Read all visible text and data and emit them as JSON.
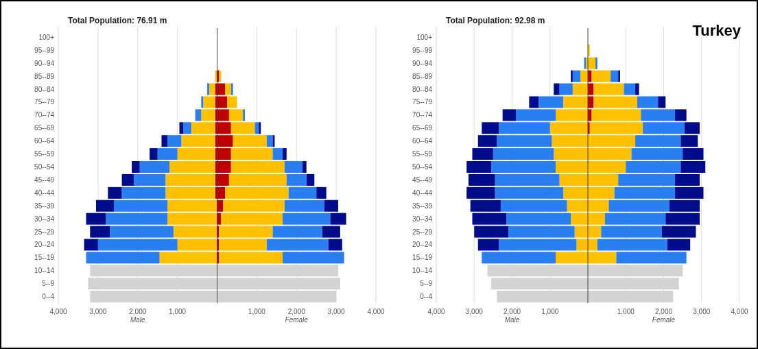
{
  "chart_data": [
    {
      "type": "bar",
      "orientation": "horizontal",
      "stacked": true,
      "title": "Total Population: 76.91 m",
      "categories": [
        "100+",
        "95--99",
        "90--94",
        "85--89",
        "80--84",
        "75--79",
        "70--74",
        "65--69",
        "60--64",
        "55--59",
        "50--54",
        "45--49",
        "40--44",
        "35--39",
        "30--34",
        "25--29",
        "20--24",
        "15--19",
        "10--14",
        "5--9",
        "0--4"
      ],
      "series": [
        {
          "color": "#c00000",
          "values": [
            null,
            null,
            null,
            null,
            -50,
            -50,
            -50,
            -50,
            -50,
            -50,
            -50,
            -50,
            -50,
            null,
            null,
            null,
            null,
            null,
            null,
            null,
            null
          ]
        },
        {
          "color": "#ffc000",
          "values": [
            null,
            null,
            null,
            -50,
            -150,
            -300,
            -350,
            -600,
            -850,
            -950,
            -1150,
            -1250,
            -1250,
            -1250,
            -1250,
            -1100,
            -1000,
            -1450,
            null,
            null,
            null
          ]
        },
        {
          "color": "#2a7ff0",
          "values": [
            null,
            null,
            null,
            null,
            -50,
            -50,
            -150,
            -200,
            -350,
            -500,
            -750,
            -800,
            -1100,
            -1350,
            -1550,
            -1600,
            -2000,
            -1850,
            null,
            null,
            null
          ]
        },
        {
          "color": "#000c8a",
          "values": [
            null,
            null,
            null,
            null,
            null,
            null,
            null,
            -100,
            -150,
            -200,
            -200,
            -300,
            -350,
            -450,
            -500,
            -500,
            -350,
            null,
            null,
            null,
            null
          ]
        },
        {
          "color": "#d3d3d3",
          "values": [
            null,
            null,
            null,
            null,
            null,
            null,
            null,
            null,
            null,
            null,
            null,
            null,
            null,
            null,
            null,
            null,
            null,
            null,
            -3200,
            -3250,
            -3200
          ]
        },
        {
          "color": "#c00000",
          "values": [
            null,
            null,
            null,
            50,
            200,
            250,
            300,
            350,
            400,
            350,
            350,
            300,
            200,
            150,
            100,
            50,
            50,
            50,
            null,
            null,
            null
          ]
        },
        {
          "color": "#ffc000",
          "values": [
            null,
            null,
            null,
            50,
            150,
            250,
            350,
            600,
            850,
            1050,
            1350,
            1450,
            1600,
            1550,
            1550,
            1350,
            1200,
            1600,
            null,
            null,
            null
          ]
        },
        {
          "color": "#2a7ff0",
          "values": [
            null,
            null,
            null,
            null,
            50,
            null,
            50,
            100,
            150,
            250,
            450,
            500,
            700,
            1000,
            1200,
            1250,
            1550,
            1550,
            null,
            null,
            null
          ]
        },
        {
          "color": "#000c8a",
          "values": [
            null,
            null,
            null,
            null,
            null,
            null,
            null,
            50,
            50,
            100,
            100,
            200,
            250,
            350,
            400,
            450,
            350,
            null,
            null,
            null,
            null
          ]
        },
        {
          "color": "#d3d3d3",
          "values": [
            null,
            null,
            null,
            null,
            null,
            null,
            null,
            null,
            null,
            null,
            null,
            null,
            null,
            null,
            null,
            null,
            null,
            null,
            3050,
            3100,
            3000
          ]
        }
      ],
      "xlim": [
        -4000,
        4000
      ],
      "xticks": [
        {
          "value": -4000,
          "label": "4,000"
        },
        {
          "value": -3000,
          "label": "3,000"
        },
        {
          "value": -2000,
          "label": "2,000"
        },
        {
          "value": -1000,
          "label": "1,000"
        },
        {
          "value": 1000,
          "label": "1,000"
        },
        {
          "value": 2000,
          "label": "2,000"
        },
        {
          "value": 3000,
          "label": "3,000"
        },
        {
          "value": 4000,
          "label": "4,000"
        }
      ],
      "grid": "x",
      "ref_lines": [
        {
          "axis": "x",
          "value": 0,
          "color": "#444444"
        }
      ],
      "annotations": [
        "Male",
        "Female"
      ]
    },
    {
      "type": "bar",
      "orientation": "horizontal",
      "stacked": true,
      "title": "Total Population: 92.98 m",
      "categories": [
        "100+",
        "95--99",
        "90--94",
        "85--89",
        "80--84",
        "75--79",
        "70--74",
        "65--69",
        "60--64",
        "55--59",
        "50--54",
        "45--49",
        "40--44",
        "35--39",
        "30--34",
        "25--29",
        "20--24",
        "15--19",
        "10--14",
        "5--9",
        "0--4"
      ],
      "series": [
        {
          "color": "#ffc000",
          "values": [
            null,
            null,
            -50,
            -200,
            -400,
            -650,
            -850,
            -1000,
            -950,
            -900,
            -850,
            -750,
            -650,
            -550,
            -450,
            -350,
            -300,
            -850,
            null,
            null,
            null
          ]
        },
        {
          "color": "#2a7ff0",
          "values": [
            null,
            null,
            -50,
            -200,
            -350,
            -650,
            -1050,
            -1350,
            -1450,
            -1600,
            -1700,
            -1700,
            -1800,
            -1750,
            -1700,
            -1750,
            -2050,
            -1950,
            null,
            null,
            null
          ]
        },
        {
          "color": "#000c8a",
          "values": [
            null,
            null,
            null,
            -50,
            -150,
            -250,
            -350,
            -450,
            -500,
            -550,
            -650,
            -700,
            -750,
            -800,
            -900,
            -900,
            -550,
            null,
            null,
            null,
            null
          ]
        },
        {
          "color": "#d3d3d3",
          "values": [
            null,
            null,
            null,
            null,
            null,
            null,
            null,
            null,
            null,
            null,
            null,
            null,
            null,
            null,
            null,
            null,
            null,
            null,
            -2650,
            -2550,
            -2400
          ]
        },
        {
          "color": "#c00000",
          "values": [
            null,
            null,
            null,
            100,
            150,
            150,
            100,
            50,
            null,
            null,
            null,
            null,
            null,
            null,
            null,
            null,
            null,
            null,
            null,
            null,
            null
          ]
        },
        {
          "color": "#ffc000",
          "values": [
            null,
            50,
            200,
            500,
            800,
            1150,
            1300,
            1400,
            1250,
            1150,
            1000,
            800,
            700,
            550,
            450,
            350,
            250,
            750,
            null,
            null,
            null
          ]
        },
        {
          "color": "#2a7ff0",
          "values": [
            null,
            null,
            50,
            200,
            300,
            550,
            900,
            1100,
            1200,
            1350,
            1450,
            1500,
            1600,
            1600,
            1600,
            1600,
            1850,
            1850,
            null,
            null,
            null
          ]
        },
        {
          "color": "#000c8a",
          "values": [
            null,
            null,
            null,
            50,
            100,
            200,
            300,
            400,
            450,
            550,
            650,
            650,
            750,
            800,
            900,
            900,
            600,
            null,
            null,
            null,
            null
          ]
        },
        {
          "color": "#d3d3d3",
          "values": [
            null,
            null,
            null,
            null,
            null,
            null,
            null,
            null,
            null,
            null,
            null,
            null,
            null,
            null,
            null,
            null,
            null,
            null,
            2500,
            2400,
            2250
          ]
        }
      ],
      "xlim": [
        -4000,
        4000
      ],
      "xticks": [
        {
          "value": -4000,
          "label": "4,000"
        },
        {
          "value": -3000,
          "label": "3,000"
        },
        {
          "value": -2000,
          "label": "2,000"
        },
        {
          "value": -1000,
          "label": "1,000"
        },
        {
          "value": 1000,
          "label": "1,000"
        },
        {
          "value": 2000,
          "label": "2,000"
        },
        {
          "value": 3000,
          "label": "3,000"
        },
        {
          "value": 4000,
          "label": "4,000"
        }
      ],
      "grid": "x",
      "ref_lines": [
        {
          "axis": "x",
          "value": 0,
          "color": "#444444"
        }
      ],
      "annotations": [
        "Male",
        "Female",
        "Turkey"
      ]
    }
  ]
}
